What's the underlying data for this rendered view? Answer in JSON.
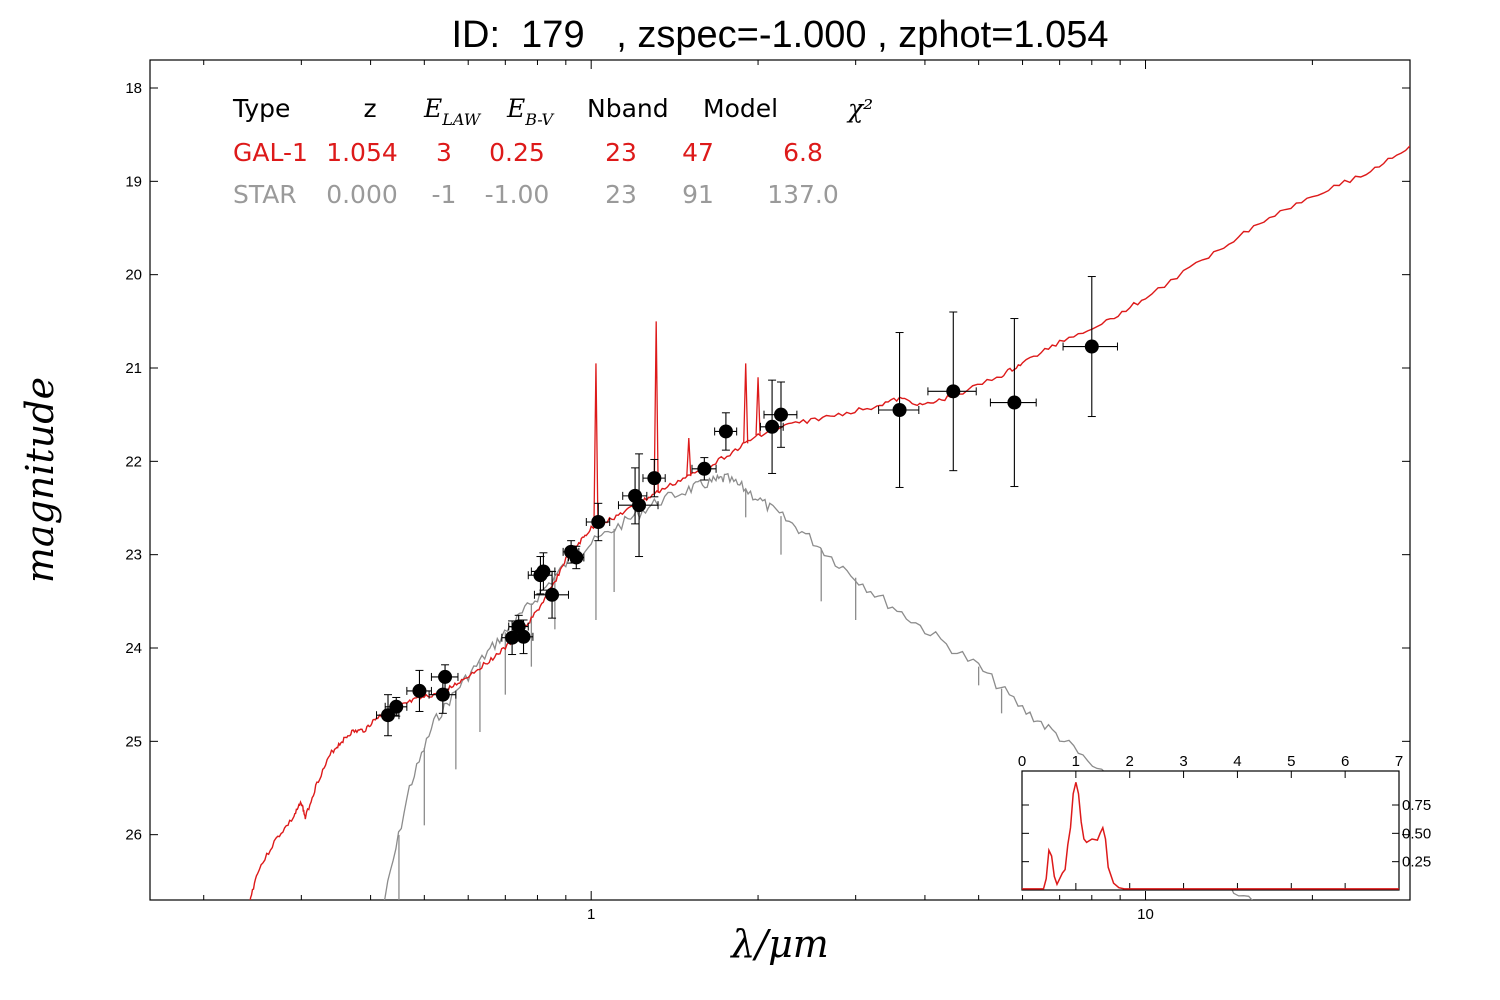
{
  "title": "ID:  179   , zspec=-1.000 , zphot=1.054",
  "chart_data": {
    "type": "scatter",
    "xlabel": "λ/μm",
    "ylabel": "magnitude",
    "x_scale": "log",
    "xlim": [
      0.16,
      30
    ],
    "ylim": [
      26.7,
      17.7
    ],
    "y_ticks": [
      "18",
      "19",
      "20",
      "21",
      "22",
      "23",
      "24",
      "25",
      "26"
    ],
    "x_ticks": [
      "1",
      "10"
    ],
    "photometry": [
      {
        "x": 0.43,
        "y": 24.72,
        "xerr": 0.02,
        "yerr": 0.22
      },
      {
        "x": 0.445,
        "y": 24.63,
        "xerr": 0.02,
        "yerr": 0.1
      },
      {
        "x": 0.49,
        "y": 24.46,
        "xerr": 0.025,
        "yerr": 0.22
      },
      {
        "x": 0.54,
        "y": 24.5,
        "xerr": 0.03,
        "yerr": 0.2
      },
      {
        "x": 0.545,
        "y": 24.31,
        "xerr": 0.03,
        "yerr": 0.13
      },
      {
        "x": 0.72,
        "y": 23.89,
        "xerr": 0.03,
        "yerr": 0.18
      },
      {
        "x": 0.74,
        "y": 23.77,
        "xerr": 0.03,
        "yerr": 0.12
      },
      {
        "x": 0.755,
        "y": 23.88,
        "xerr": 0.03,
        "yerr": 0.18
      },
      {
        "x": 0.81,
        "y": 23.22,
        "xerr": 0.04,
        "yerr": 0.2
      },
      {
        "x": 0.82,
        "y": 23.18,
        "xerr": 0.04,
        "yerr": 0.2
      },
      {
        "x": 0.85,
        "y": 23.43,
        "xerr": 0.06,
        "yerr": 0.25
      },
      {
        "x": 0.92,
        "y": 22.97,
        "xerr": 0.03,
        "yerr": 0.12
      },
      {
        "x": 0.94,
        "y": 23.03,
        "xerr": 0.03,
        "yerr": 0.12
      },
      {
        "x": 1.03,
        "y": 22.65,
        "xerr": 0.05,
        "yerr": 0.2
      },
      {
        "x": 1.2,
        "y": 22.37,
        "xerr": 0.06,
        "yerr": 0.3
      },
      {
        "x": 1.22,
        "y": 22.47,
        "xerr": 0.1,
        "yerr": 0.55
      },
      {
        "x": 1.3,
        "y": 22.18,
        "xerr": 0.06,
        "yerr": 0.2
      },
      {
        "x": 1.6,
        "y": 22.08,
        "xerr": 0.08,
        "yerr": 0.12
      },
      {
        "x": 1.75,
        "y": 21.68,
        "xerr": 0.08,
        "yerr": 0.2
      },
      {
        "x": 2.12,
        "y": 21.63,
        "xerr": 0.1,
        "yerr": 0.5
      },
      {
        "x": 2.2,
        "y": 21.5,
        "xerr": 0.15,
        "yerr": 0.35
      },
      {
        "x": 3.6,
        "y": 21.45,
        "xerr": 0.3,
        "yerr": 0.83
      },
      {
        "x": 4.5,
        "y": 21.25,
        "xerr": 0.45,
        "yerr": 0.85
      },
      {
        "x": 5.8,
        "y": 21.37,
        "xerr": 0.55,
        "yerr": 0.9
      },
      {
        "x": 8.0,
        "y": 20.77,
        "xerr": 0.9,
        "yerr": 0.75
      }
    ],
    "galaxy_model": {
      "color": "#dd1a1a",
      "points": [
        [
          0.24,
          26.8
        ],
        [
          0.25,
          26.4
        ],
        [
          0.27,
          26.05
        ],
        [
          0.29,
          25.82
        ],
        [
          0.3,
          25.65
        ],
        [
          0.305,
          25.82
        ],
        [
          0.32,
          25.45
        ],
        [
          0.34,
          25.12
        ],
        [
          0.355,
          25.0
        ],
        [
          0.37,
          24.9
        ],
        [
          0.39,
          24.88
        ],
        [
          0.41,
          24.75
        ],
        [
          0.43,
          24.68
        ],
        [
          0.45,
          24.63
        ],
        [
          0.48,
          24.56
        ],
        [
          0.52,
          24.5
        ],
        [
          0.56,
          24.42
        ],
        [
          0.6,
          24.3
        ],
        [
          0.65,
          24.15
        ],
        [
          0.7,
          24.0
        ],
        [
          0.75,
          23.82
        ],
        [
          0.8,
          23.6
        ],
        [
          0.85,
          23.35
        ],
        [
          0.9,
          23.05
        ],
        [
          0.95,
          22.88
        ],
        [
          1.0,
          22.72
        ],
        [
          1.1,
          22.6
        ],
        [
          1.2,
          22.48
        ],
        [
          1.3,
          22.35
        ],
        [
          1.45,
          22.2
        ],
        [
          1.6,
          22.08
        ],
        [
          1.8,
          21.9
        ],
        [
          2.0,
          21.72
        ],
        [
          2.3,
          21.6
        ],
        [
          2.7,
          21.52
        ],
        [
          3.2,
          21.42
        ],
        [
          3.6,
          21.33
        ],
        [
          4.0,
          21.4
        ],
        [
          4.5,
          21.3
        ],
        [
          5.5,
          21.08
        ],
        [
          6.0,
          20.95
        ],
        [
          7.0,
          20.72
        ],
        [
          8.5,
          20.5
        ],
        [
          10.0,
          20.25
        ],
        [
          13.0,
          19.8
        ],
        [
          16.0,
          19.45
        ],
        [
          20.0,
          19.15
        ],
        [
          25.0,
          18.92
        ],
        [
          30.0,
          18.62
        ]
      ],
      "emission_lines": [
        [
          1.02,
          20.95
        ],
        [
          1.31,
          20.5
        ],
        [
          1.5,
          21.75
        ],
        [
          1.9,
          20.95
        ],
        [
          2.0,
          21.1
        ]
      ]
    },
    "star_model": {
      "color": "#8c8c8c",
      "points": [
        [
          0.42,
          26.8
        ],
        [
          0.47,
          25.5
        ],
        [
          0.52,
          24.8
        ],
        [
          0.58,
          24.4
        ],
        [
          0.65,
          24.05
        ],
        [
          0.72,
          23.75
        ],
        [
          0.8,
          23.45
        ],
        [
          0.9,
          23.1
        ],
        [
          1.0,
          22.88
        ],
        [
          1.15,
          22.65
        ],
        [
          1.3,
          22.45
        ],
        [
          1.5,
          22.3
        ],
        [
          1.65,
          22.22
        ],
        [
          1.75,
          22.18
        ],
        [
          1.9,
          22.3
        ],
        [
          2.1,
          22.5
        ],
        [
          2.4,
          22.75
        ],
        [
          2.8,
          23.1
        ],
        [
          3.3,
          23.45
        ],
        [
          4.0,
          23.8
        ],
        [
          5.0,
          24.2
        ],
        [
          6.0,
          24.65
        ],
        [
          7.0,
          24.95
        ],
        [
          8.5,
          25.4
        ],
        [
          10.0,
          25.8
        ],
        [
          13.0,
          26.35
        ],
        [
          16.0,
          26.8
        ]
      ],
      "absorption": [
        [
          0.45,
          26.8
        ],
        [
          0.5,
          25.9
        ],
        [
          0.57,
          25.3
        ],
        [
          0.63,
          24.9
        ],
        [
          0.7,
          24.5
        ],
        [
          0.78,
          24.2
        ],
        [
          0.86,
          23.8
        ],
        [
          1.02,
          23.7
        ],
        [
          1.1,
          23.4
        ],
        [
          1.9,
          22.6
        ],
        [
          2.2,
          23.0
        ],
        [
          2.6,
          23.5
        ],
        [
          3.0,
          23.7
        ],
        [
          5.0,
          24.4
        ],
        [
          5.5,
          24.7
        ]
      ]
    },
    "table": {
      "headers": [
        "Type",
        "z",
        "E_LAW",
        "E_B-V",
        "Nband",
        "Model",
        "χ²"
      ],
      "rows": [
        {
          "color": "#dd1a1a",
          "cells": [
            "GAL-1",
            "1.054",
            "3",
            "0.25",
            "23",
            "47",
            "6.8"
          ]
        },
        {
          "color": "#9a9a9a",
          "cells": [
            "STAR",
            "0.000",
            "-1",
            "-1.00",
            "23",
            "91",
            "137.0"
          ]
        }
      ]
    },
    "inset": {
      "type": "line",
      "xlim": [
        0,
        7
      ],
      "ylim": [
        0,
        1.05
      ],
      "x_ticks": [
        "0",
        "1",
        "2",
        "3",
        "4",
        "5",
        "6",
        "7"
      ],
      "y_ticks": [
        "0.25",
        "0.50",
        "0.75"
      ],
      "color": "#dd1a1a",
      "points": [
        [
          0,
          0.01
        ],
        [
          0.4,
          0.01
        ],
        [
          0.45,
          0.1
        ],
        [
          0.5,
          0.35
        ],
        [
          0.55,
          0.3
        ],
        [
          0.6,
          0.12
        ],
        [
          0.65,
          0.05
        ],
        [
          0.75,
          0.15
        ],
        [
          0.8,
          0.18
        ],
        [
          0.85,
          0.4
        ],
        [
          0.9,
          0.55
        ],
        [
          0.95,
          0.85
        ],
        [
          1.0,
          0.95
        ],
        [
          1.05,
          0.85
        ],
        [
          1.1,
          0.6
        ],
        [
          1.15,
          0.45
        ],
        [
          1.2,
          0.42
        ],
        [
          1.3,
          0.45
        ],
        [
          1.4,
          0.44
        ],
        [
          1.45,
          0.5
        ],
        [
          1.5,
          0.55
        ],
        [
          1.55,
          0.45
        ],
        [
          1.6,
          0.2
        ],
        [
          1.7,
          0.06
        ],
        [
          1.8,
          0.02
        ],
        [
          1.9,
          0.01
        ],
        [
          7,
          0.01
        ]
      ]
    }
  }
}
